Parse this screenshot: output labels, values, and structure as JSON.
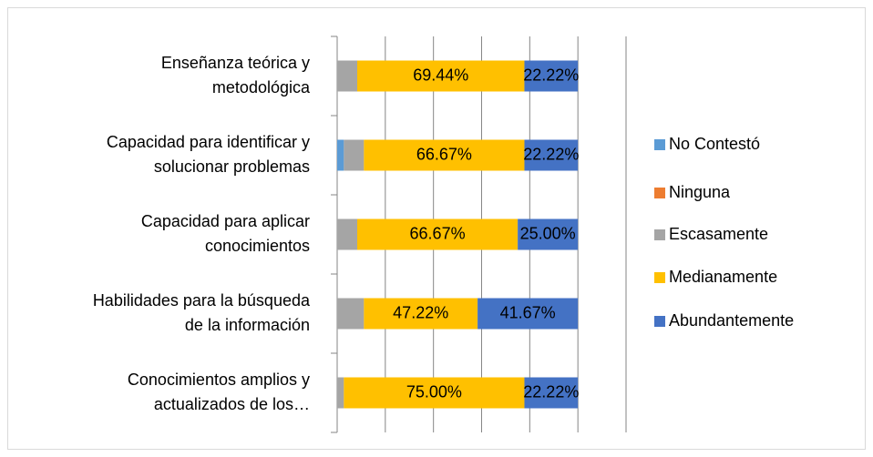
{
  "chart_data": {
    "type": "stacked_barh",
    "categories": [
      [
        "Enseñanza teórica y",
        "metodológica"
      ],
      [
        "Capacidad para identificar y",
        "solucionar problemas"
      ],
      [
        "Capacidad para aplicar",
        "conocimientos"
      ],
      [
        "Habilidades para la búsqueda",
        "de la información"
      ],
      [
        "Conocimientos amplios y",
        "actualizados de los…"
      ]
    ],
    "series": [
      {
        "name": "No Contestó",
        "color": "#5b9bd5",
        "values": [
          0,
          2.78,
          0,
          0,
          0
        ]
      },
      {
        "name": "Ninguna",
        "color": "#ed7d31",
        "values": [
          0,
          0,
          0,
          0,
          0
        ]
      },
      {
        "name": "Escasamente",
        "color": "#a5a5a5",
        "values": [
          8.33,
          8.33,
          8.33,
          11.11,
          2.78
        ]
      },
      {
        "name": "Medianamente",
        "color": "#ffc000",
        "values": [
          69.44,
          66.67,
          66.67,
          47.22,
          75.0
        ],
        "value_labels": [
          "69.44%",
          "66.67%",
          "66.67%",
          "47.22%",
          "75.00%"
        ]
      },
      {
        "name": "Abundantemente",
        "color": "#4472c4",
        "values": [
          22.22,
          22.22,
          25.0,
          41.67,
          22.22
        ],
        "value_labels": [
          "22.22%",
          "22.22%",
          "25.00%",
          "41.67%",
          "22.22%"
        ]
      }
    ],
    "xlim": [
      0,
      120
    ],
    "xticks": [
      0,
      20,
      40,
      60,
      80,
      100,
      120
    ],
    "grid": true,
    "legend": "right"
  }
}
